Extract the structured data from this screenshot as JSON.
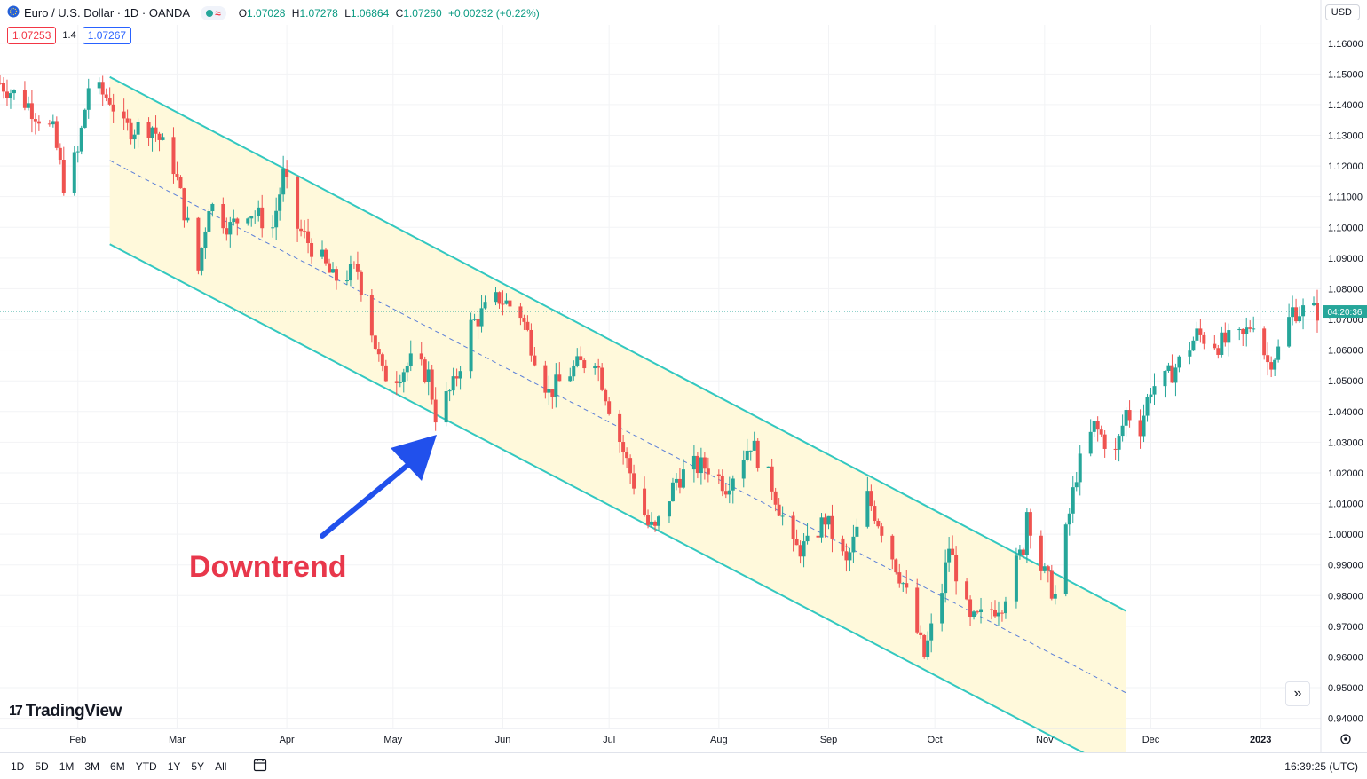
{
  "header": {
    "symbol": "Euro / U.S. Dollar · 1D · OANDA",
    "approx_glyph": "≈",
    "ohlc": [
      {
        "k": "O",
        "v": "1.07028"
      },
      {
        "k": "H",
        "v": "1.07278"
      },
      {
        "k": "L",
        "v": "1.06864"
      },
      {
        "k": "C",
        "v": "1.07260"
      }
    ],
    "change": "+0.00232 (+0.22%)",
    "sell_price": "1.07253",
    "spread": "1.4",
    "buy_price": "1.07267",
    "currency": "USD"
  },
  "countdown": "04:20:36",
  "annotation": "Downtrend",
  "logo": "TradingView",
  "logo_mark": "17",
  "scroll_glyph": "»",
  "range_buttons": [
    "1D",
    "5D",
    "1M",
    "3M",
    "6M",
    "YTD",
    "1Y",
    "5Y",
    "All"
  ],
  "clock": "16:39:25 (UTC)",
  "colors": {
    "up": "#26a69a",
    "down": "#ef5350",
    "channel": "#33c8c0",
    "channel_fill": "#fff9db",
    "arrow": "#2150ec",
    "annotation": "#e8374b"
  },
  "chart_data": {
    "type": "candlestick",
    "x_ticks": [
      {
        "label": "Feb",
        "date": "2022-02-01"
      },
      {
        "label": "Mar",
        "date": "2022-03-01"
      },
      {
        "label": "Apr",
        "date": "2022-04-01"
      },
      {
        "label": "May",
        "date": "2022-05-01"
      },
      {
        "label": "Jun",
        "date": "2022-06-01"
      },
      {
        "label": "Jul",
        "date": "2022-07-01"
      },
      {
        "label": "Aug",
        "date": "2022-08-01"
      },
      {
        "label": "Sep",
        "date": "2022-09-01"
      },
      {
        "label": "Oct",
        "date": "2022-10-01"
      },
      {
        "label": "Nov",
        "date": "2022-11-01"
      },
      {
        "label": "Dec",
        "date": "2022-12-01"
      },
      {
        "label": "2023",
        "date": "2023-01-01"
      }
    ],
    "y_ticks": [
      "1.16000",
      "1.15000",
      "1.14000",
      "1.13000",
      "1.12000",
      "1.11000",
      "1.10000",
      "1.09000",
      "1.08000",
      "1.07000",
      "1.06000",
      "1.05000",
      "1.04000",
      "1.03000",
      "1.02000",
      "1.01000",
      "1.00000",
      "0.99000",
      "0.98000",
      "0.97000",
      "0.96000",
      "0.95000",
      "0.94000"
    ],
    "ylim": [
      0.937,
      1.166
    ],
    "xlim": [
      "2022-01-10",
      "2023-01-18"
    ],
    "current_price": 1.0726,
    "channel": {
      "upper": [
        {
          "date": "2022-02-10",
          "price": 1.149
        },
        {
          "date": "2022-11-24",
          "price": 0.975
        }
      ],
      "lower": [
        {
          "date": "2022-02-10",
          "price": 1.0945
        },
        {
          "date": "2022-11-24",
          "price": 0.9215
        }
      ],
      "mid": [
        {
          "date": "2022-02-10",
          "price": 1.1218
        },
        {
          "date": "2022-11-24",
          "price": 0.9483
        }
      ]
    },
    "path": [
      [
        "2022-01-10",
        1.147
      ],
      [
        "2022-01-18",
        1.14
      ],
      [
        "2022-01-25",
        1.131
      ],
      [
        "2022-01-28",
        1.1145
      ],
      [
        "2022-02-01",
        1.124
      ],
      [
        "2022-02-04",
        1.146
      ],
      [
        "2022-02-10",
        1.142
      ],
      [
        "2022-02-14",
        1.132
      ],
      [
        "2022-02-22",
        1.133
      ],
      [
        "2022-02-28",
        1.12
      ],
      [
        "2022-03-07",
        1.086
      ],
      [
        "2022-03-10",
        1.108
      ],
      [
        "2022-03-16",
        1.1
      ],
      [
        "2022-03-21",
        1.106
      ],
      [
        "2022-03-28",
        1.1
      ],
      [
        "2022-03-31",
        1.117
      ],
      [
        "2022-04-04",
        1.1
      ],
      [
        "2022-04-11",
        1.089
      ],
      [
        "2022-04-14",
        1.083
      ],
      [
        "2022-04-21",
        1.086
      ],
      [
        "2022-04-28",
        1.052
      ],
      [
        "2022-05-02",
        1.052
      ],
      [
        "2022-05-06",
        1.056
      ],
      [
        "2022-05-11",
        1.052
      ],
      [
        "2022-05-13",
        1.039
      ],
      [
        "2022-05-18",
        1.048
      ],
      [
        "2022-05-23",
        1.068
      ],
      [
        "2022-05-27",
        1.073
      ],
      [
        "2022-05-31",
        1.077
      ],
      [
        "2022-06-06",
        1.072
      ],
      [
        "2022-06-09",
        1.062
      ],
      [
        "2022-06-14",
        1.046
      ],
      [
        "2022-06-21",
        1.054
      ],
      [
        "2022-06-27",
        1.058
      ],
      [
        "2022-07-01",
        1.042
      ],
      [
        "2022-07-05",
        1.027
      ],
      [
        "2022-07-12",
        1.003
      ],
      [
        "2022-07-14",
        1.001
      ],
      [
        "2022-07-20",
        1.018
      ],
      [
        "2022-07-25",
        1.022
      ],
      [
        "2022-07-29",
        1.022
      ],
      [
        "2022-08-03",
        1.016
      ],
      [
        "2022-08-10",
        1.03
      ],
      [
        "2022-08-16",
        1.016
      ],
      [
        "2022-08-22",
        0.995
      ],
      [
        "2022-08-26",
        0.996
      ],
      [
        "2022-08-31",
        1.005
      ],
      [
        "2022-09-06",
        0.99
      ],
      [
        "2022-09-12",
        1.012
      ],
      [
        "2022-09-16",
        1.002
      ],
      [
        "2022-09-22",
        0.984
      ],
      [
        "2022-09-28",
        0.96
      ],
      [
        "2022-10-03",
        0.982
      ],
      [
        "2022-10-05",
        0.996
      ],
      [
        "2022-10-11",
        0.971
      ],
      [
        "2022-10-14",
        0.973
      ],
      [
        "2022-10-20",
        0.978
      ],
      [
        "2022-10-26",
        0.996
      ],
      [
        "2022-10-27",
        1.008
      ],
      [
        "2022-10-31",
        0.989
      ],
      [
        "2022-11-04",
        0.98
      ],
      [
        "2022-11-07",
        1.0
      ],
      [
        "2022-11-10",
        1.02
      ],
      [
        "2022-11-15",
        1.035
      ],
      [
        "2022-11-21",
        1.026
      ],
      [
        "2022-11-24",
        1.04
      ],
      [
        "2022-11-28",
        1.035
      ],
      [
        "2022-12-01",
        1.048
      ],
      [
        "2022-12-05",
        1.05
      ],
      [
        "2022-12-09",
        1.056
      ],
      [
        "2022-12-14",
        1.065
      ],
      [
        "2022-12-20",
        1.062
      ],
      [
        "2022-12-27",
        1.064
      ],
      [
        "2022-12-30",
        1.07
      ],
      [
        "2023-01-03",
        1.056
      ],
      [
        "2023-01-06",
        1.06
      ],
      [
        "2023-01-10",
        1.073
      ],
      [
        "2023-01-17",
        1.0726
      ]
    ]
  }
}
